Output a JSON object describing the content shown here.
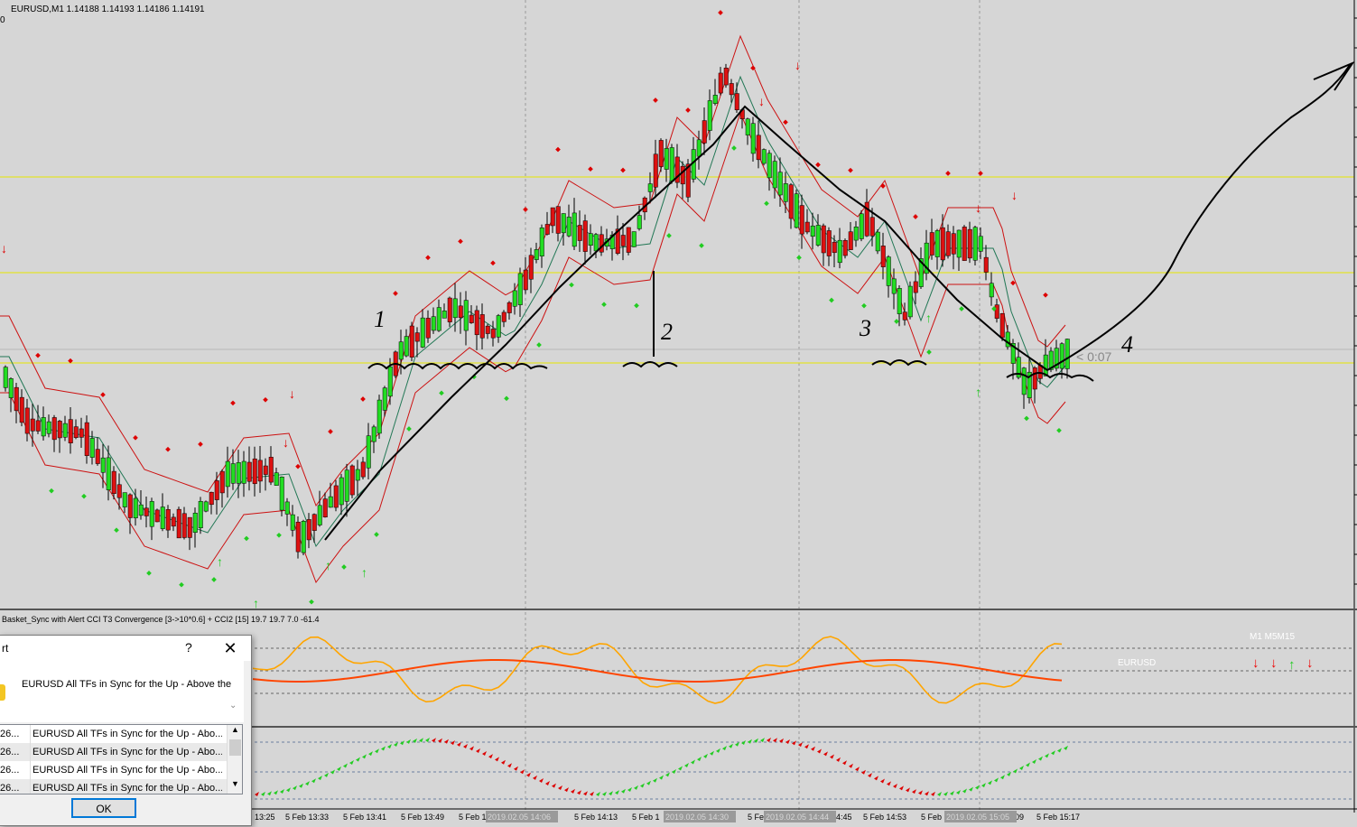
{
  "chart": {
    "header": "EURUSD,M1  1.14188 1.14193 1.14186 1.14191",
    "subwindow_flag": "0",
    "countdown": "< 0:07",
    "wave_labels": [
      "1",
      "2",
      "3",
      "4"
    ],
    "indicator_title": "Basket_Sync with Alert  CCI T3 Convergence [3->10*0.6] + CCI2 [15] 19.7 19.7 7.0 -61.4",
    "tf_header": "M1  M5M15",
    "symbol_label": "EURUSD",
    "time_labels": [
      "13:25",
      "5 Feb 13:33",
      "5 Feb 13:41",
      "5 Feb 13:49",
      "5 Feb 1",
      "5 Feb 14:13",
      "5 Feb 1",
      "5 Fe",
      "4:45",
      "5 Feb 14:53",
      "5 Feb",
      "09",
      "5 Feb 15:17"
    ],
    "time_overlays": [
      "2019.02.05 14:06",
      "2019.02.05 14:30",
      "2019.02.05 14:44",
      "2019.02.05 15:05"
    ],
    "colors": {
      "background": "#d6d6d6",
      "bull_candle": "#22dd22",
      "bear_candle": "#dd1111",
      "envelope": "#cc1111",
      "ma": "#227755",
      "level_line": "#e6e600",
      "cci_fast": "#ffa500",
      "cci_slow": "#ff4500",
      "sell_arrow": "#dd0000",
      "buy_arrow": "#22cc22"
    }
  },
  "alert_dialog": {
    "title": "rt",
    "help_label": "?",
    "close_label": "✕",
    "message": "EURUSD All TFs in Sync for the Up - Above the",
    "rows": [
      {
        "time": "26...",
        "text": "EURUSD All TFs in Sync for the Up - Abo..."
      },
      {
        "time": "26...",
        "text": "EURUSD All TFs in Sync for the Up - Abo..."
      },
      {
        "time": "26...",
        "text": "EURUSD All TFs in Sync for the Up - Abo..."
      },
      {
        "time": "26...",
        "text": "EURUSD All TFs in Sync for the Up - Abo..."
      }
    ],
    "ok_label": "OK"
  }
}
